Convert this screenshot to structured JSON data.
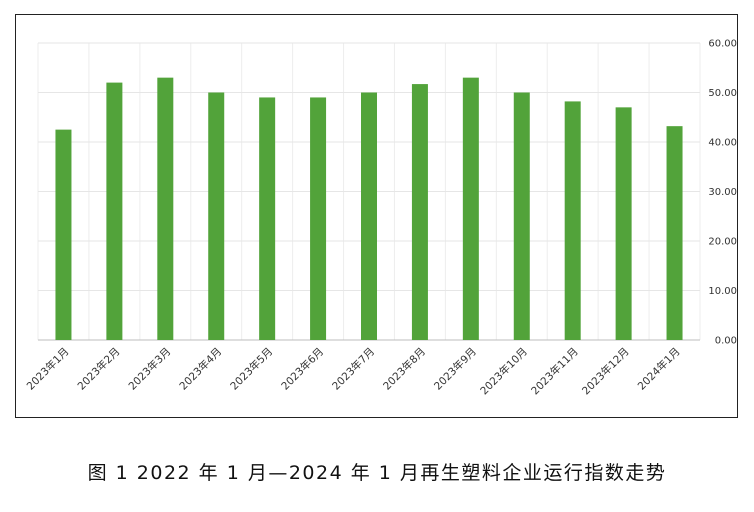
{
  "caption": "图 1  2022 年 1 月—2024 年 1 月再生塑料企业运行指数走势",
  "chart_data": {
    "type": "bar",
    "title": "",
    "xlabel": "",
    "ylabel": "",
    "categories": [
      "2023年1月",
      "2023年2月",
      "2023年3月",
      "2023年4月",
      "2023年5月",
      "2023年6月",
      "2023年7月",
      "2023年8月",
      "2023年9月",
      "2023年10月",
      "2023年11月",
      "2023年12月",
      "2024年1月"
    ],
    "values": [
      42.5,
      52.0,
      53.0,
      50.0,
      49.0,
      49.0,
      50.0,
      51.7,
      53.0,
      50.0,
      48.2,
      47.0,
      43.2
    ],
    "ylim": [
      0,
      60
    ],
    "yticks": [
      "0.00",
      "10.00",
      "20.00",
      "30.00",
      "40.00",
      "50.00",
      "60.00"
    ],
    "y_axis_side": "right",
    "grid": true,
    "bar_color": "#52a33a"
  }
}
